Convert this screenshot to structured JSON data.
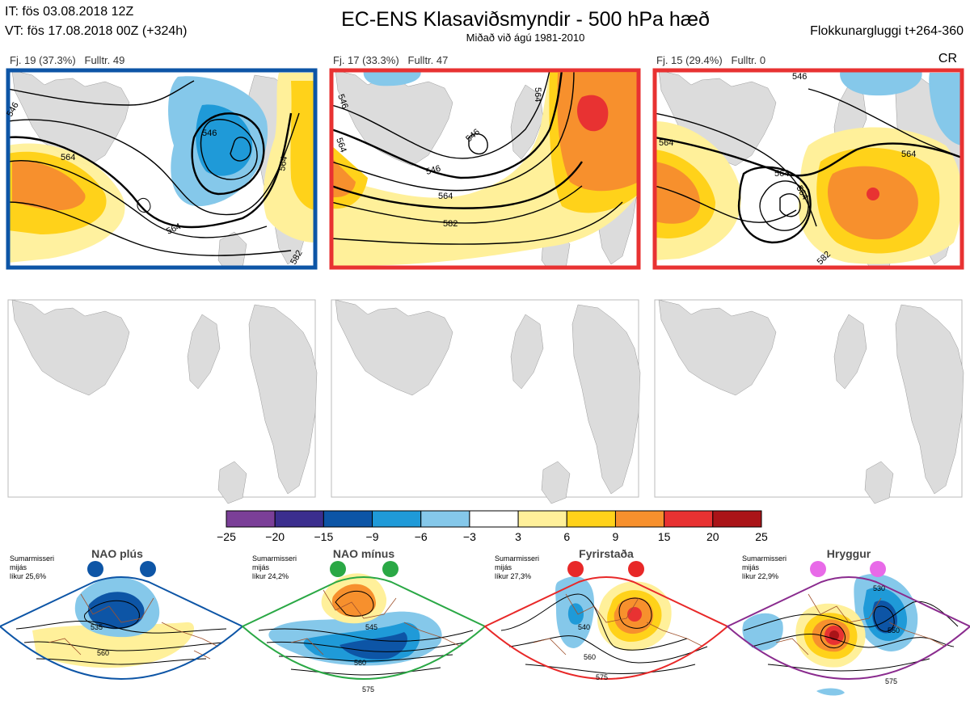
{
  "header": {
    "it_line": "IT: fös 03.08.2018 12Z",
    "vt_line": "VT: fös 17.08.2018 00Z  (+324h)",
    "title": "EC-ENS Klasaviðsmyndir - 500 hPa hæð",
    "subtitle": "Miðað við ágú 1981-2010",
    "window": "Flokkunargluggi t+264-360",
    "cr": "CR"
  },
  "clusters": [
    {
      "label": "Fj. 19 (37.3%)",
      "fulltr": "Fulltr. 49",
      "frame_color": "#0d55a6",
      "contour_labels": [
        "546",
        "564",
        "564",
        "564",
        "546",
        "582"
      ]
    },
    {
      "label": "Fj. 17 (33.3%)",
      "fulltr": "Fulltr. 47",
      "frame_color": "#e83232",
      "contour_labels": [
        "546",
        "564",
        "546",
        "546",
        "564",
        "564",
        "582"
      ]
    },
    {
      "label": "Fj. 15 (29.4%)",
      "fulltr": "Fulltr. 0",
      "frame_color": "#e83232",
      "contour_labels": [
        "546",
        "564",
        "564",
        "564",
        "564",
        "582"
      ]
    }
  ],
  "colorbar": {
    "ticks": [
      "−25",
      "−20",
      "−15",
      "−9",
      "−6",
      "−3",
      "3",
      "6",
      "9",
      "15",
      "20",
      "25"
    ],
    "colors": [
      "#7b3f98",
      "#3b2e8e",
      "#0d55a6",
      "#1f9ad8",
      "#85c8ea",
      "#ffffff",
      "#fff09a",
      "#ffd21a",
      "#f7902d",
      "#e83232",
      "#aa1418"
    ]
  },
  "regimes": [
    {
      "name": "NAO plús",
      "season": "Sumarmisseri",
      "mean": "mijás",
      "prob": "líkur 25,6%",
      "dot_color": "#0d55a6",
      "frame_color": "#0d55a6",
      "contour_labels": [
        "535",
        "560"
      ]
    },
    {
      "name": "NAO mínus",
      "season": "Sumarmisseri",
      "mean": "mijás",
      "prob": "líkur 24,2%",
      "dot_color": "#2aa845",
      "frame_color": "#2aa845",
      "contour_labels": [
        "545",
        "560",
        "575"
      ]
    },
    {
      "name": "Fyrirstaða",
      "season": "Sumarmisseri",
      "mean": "mijás",
      "prob": "líkur 27,3%",
      "dot_color": "#e82828",
      "frame_color": "#e82828",
      "contour_labels": [
        "540",
        "560",
        "575"
      ]
    },
    {
      "name": "Hryggur",
      "season": "Sumarmisseri",
      "mean": "mijás",
      "prob": "líkur 22,9%",
      "dot_color": "#e86ae8",
      "frame_color": "#8a2b8e",
      "contour_labels": [
        "530",
        "550",
        "575"
      ]
    }
  ],
  "chart_data": {
    "type": "heatmap",
    "title": "EC-ENS Klasaviðsmyndir - 500 hPa hæð",
    "subtitle": "Miðað við ágú 1981-2010",
    "colorbar_ticks": [
      -25,
      -20,
      -15,
      -9,
      -6,
      -3,
      3,
      6,
      9,
      15,
      20,
      25
    ],
    "panels": [
      {
        "label": "Fj. 19 (37.3%)",
        "members": 49
      },
      {
        "label": "Fj. 17 (33.3%)",
        "members": 47
      },
      {
        "label": "Fj. 15 (29.4%)",
        "members": 0
      }
    ],
    "regimes": [
      {
        "name": "NAO plús",
        "probability_pct": 25.6
      },
      {
        "name": "NAO mínus",
        "probability_pct": 24.2
      },
      {
        "name": "Fyrirstaða",
        "probability_pct": 27.3
      },
      {
        "name": "Hryggur",
        "probability_pct": 22.9
      }
    ]
  }
}
